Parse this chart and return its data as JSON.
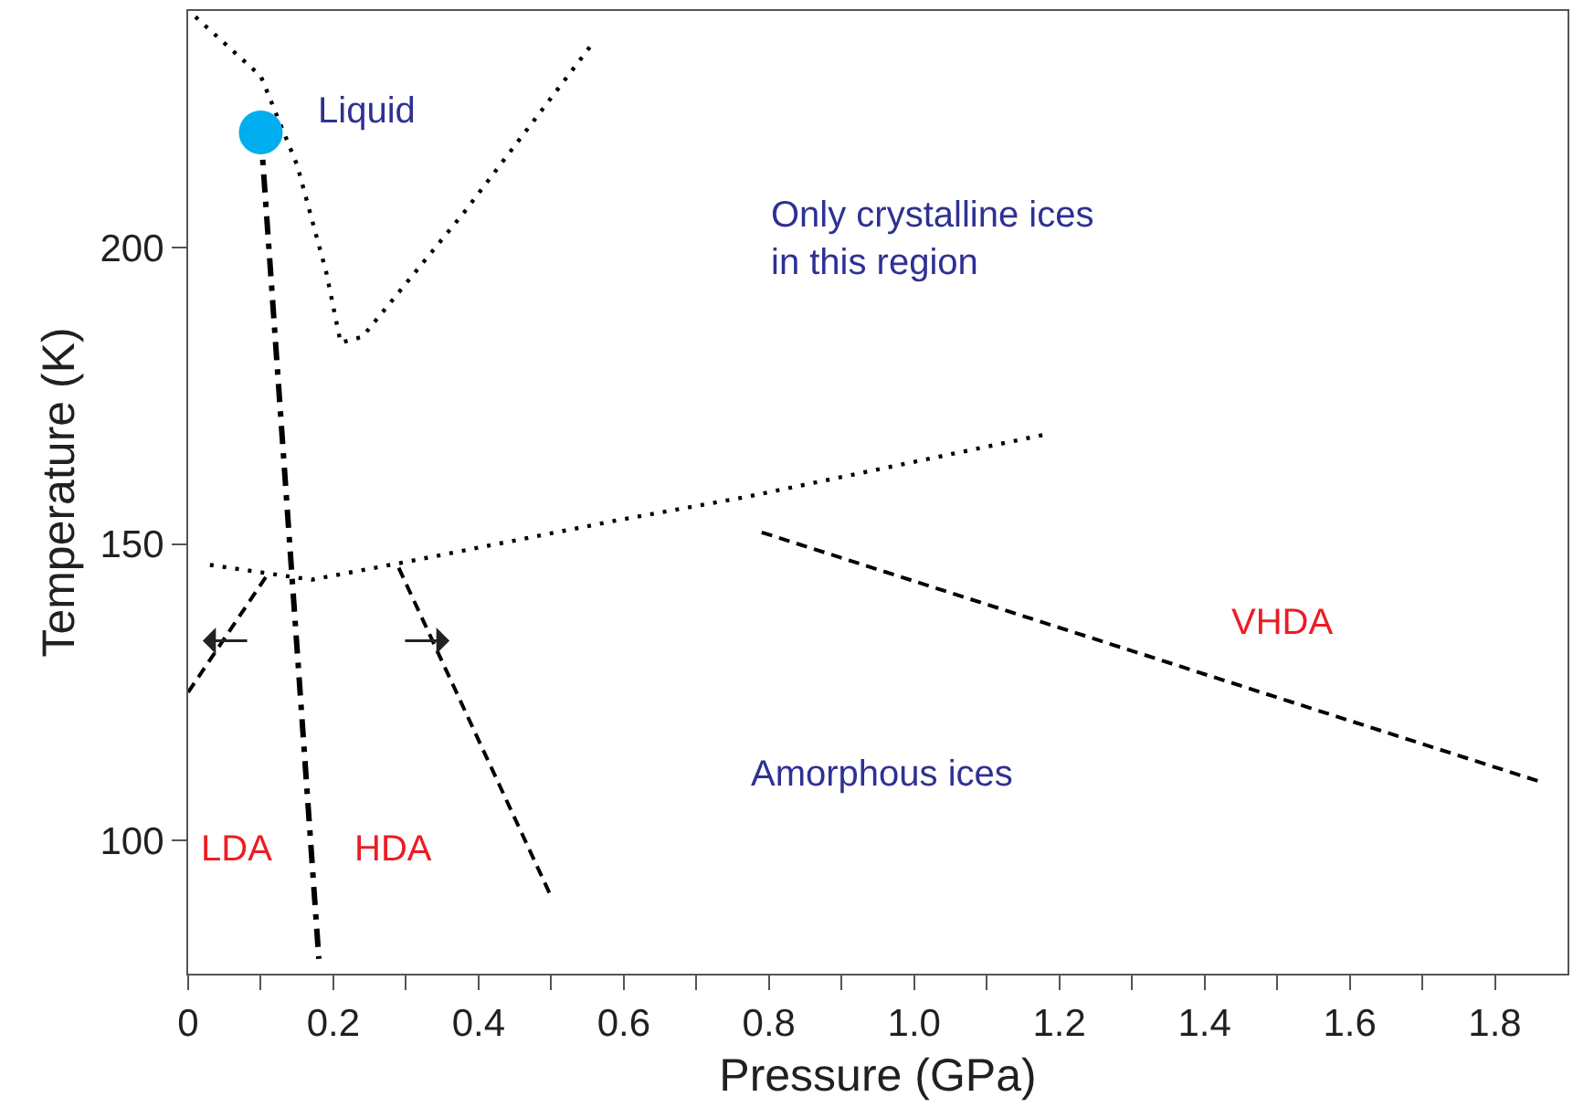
{
  "chart_data": {
    "type": "line",
    "xlabel": "Pressure (GPa)",
    "ylabel": "Temperature (K)",
    "xlim": [
      0,
      1.9
    ],
    "ylim": [
      77.5,
      240
    ],
    "xticks": [
      {
        "value": 0,
        "label": "0"
      },
      {
        "value": 0.1,
        "label": null
      },
      {
        "value": 0.2,
        "label": "0.2"
      },
      {
        "value": 0.3,
        "label": null
      },
      {
        "value": 0.4,
        "label": "0.4"
      },
      {
        "value": 0.5,
        "label": null
      },
      {
        "value": 0.6,
        "label": "0.6"
      },
      {
        "value": 0.7,
        "label": null
      },
      {
        "value": 0.8,
        "label": "0.8"
      },
      {
        "value": 0.9,
        "label": null
      },
      {
        "value": 1.0,
        "label": "1.0"
      },
      {
        "value": 1.1,
        "label": null
      },
      {
        "value": 1.2,
        "label": "1.2"
      },
      {
        "value": 1.3,
        "label": null
      },
      {
        "value": 1.4,
        "label": "1.4"
      },
      {
        "value": 1.5,
        "label": null
      },
      {
        "value": 1.6,
        "label": "1.6"
      },
      {
        "value": 1.7,
        "label": null
      },
      {
        "value": 1.8,
        "label": "1.8"
      }
    ],
    "yticks": [
      100,
      150,
      200
    ],
    "grid": false,
    "series": [
      {
        "color": "#000000",
        "line_style": "dotted",
        "x": [
          0.01,
          0.1,
          0.15,
          0.19,
          0.21,
          0.24,
          0.38,
          0.56
        ],
        "values": [
          239,
          229,
          214,
          196,
          184,
          185,
          206,
          235
        ]
      },
      {
        "color": "#000000",
        "line_style": "dotted",
        "x": [
          0.03,
          0.17,
          0.3,
          0.59,
          0.77,
          1.18
        ],
        "values": [
          146.5,
          144,
          147,
          154,
          158,
          168.5
        ]
      },
      {
        "color": "#000000",
        "line_style": "dashdot",
        "x": [
          0.1,
          0.18
        ],
        "values": [
          219.5,
          80
        ]
      },
      {
        "color": "#000000",
        "line_style": "dashed",
        "x": [
          0,
          0.11
        ],
        "values": [
          125,
          145
        ]
      },
      {
        "color": "#000000",
        "line_style": "dashed",
        "x": [
          0.29,
          0.5
        ],
        "values": [
          146,
          90.5
        ]
      },
      {
        "color": "#000000",
        "line_style": "dashed",
        "x": [
          0.79,
          1.86
        ],
        "values": [
          152,
          110
        ]
      },
      {
        "type": "scatter",
        "color": "#00aeef",
        "marker": "circle",
        "x": [
          0.1
        ],
        "values": [
          219.5
        ]
      }
    ],
    "annotations": [
      "Liquid",
      "Only crystalline ices\nin this region",
      "Amorphous ices",
      "LDA",
      "HDA",
      "VHDA"
    ]
  }
}
